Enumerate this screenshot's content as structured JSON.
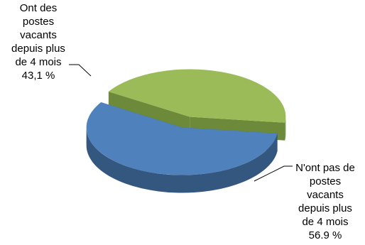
{
  "chart_data": {
    "type": "pie",
    "style": "3d-exploded",
    "title": "",
    "slices": [
      {
        "value": 43.1,
        "label_lines": [
          "Ont des",
          "postes",
          "vacants",
          "depuis plus",
          "de 4 mois",
          "43,1 %"
        ],
        "color": "#9bbb59",
        "side_color": "#6d8a3a"
      },
      {
        "value": 56.9,
        "label_lines": [
          "N'ont pas de",
          "postes",
          "vacants",
          "depuis plus",
          "de 4 mois",
          "56.9 %"
        ],
        "color": "#4f81bd",
        "side_color": "#34577f"
      }
    ]
  }
}
